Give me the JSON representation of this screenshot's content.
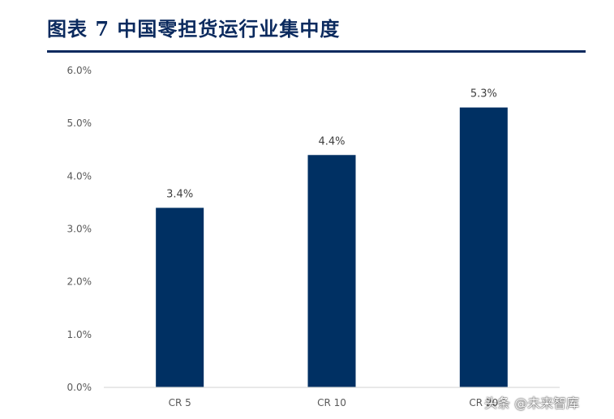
{
  "figure": {
    "title": "图表  7    中国零担货运行业集中度",
    "watermark": "头条 @未来智库"
  },
  "chart_data": {
    "type": "bar",
    "categories": [
      "CR 5",
      "CR 10",
      "CR 20"
    ],
    "values": [
      3.4,
      4.4,
      5.3
    ],
    "data_labels": [
      "3.4%",
      "4.4%",
      "5.3%"
    ],
    "ylim": [
      0,
      6
    ],
    "yticks": [
      "0.0%",
      "1.0%",
      "2.0%",
      "3.0%",
      "4.0%",
      "5.0%",
      "6.0%"
    ],
    "bar_color": "#003063",
    "grid": false,
    "legend": "none",
    "title": "",
    "xlabel": "",
    "ylabel": ""
  }
}
